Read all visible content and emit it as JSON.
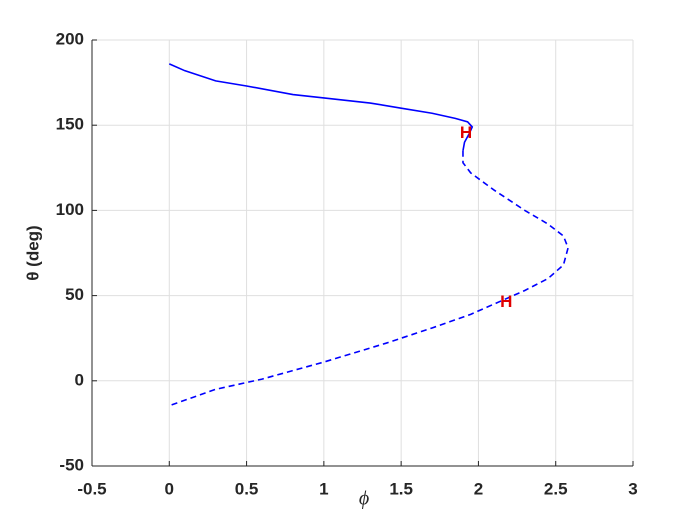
{
  "chart_data": {
    "type": "line",
    "xlabel": "ϕ",
    "ylabel": "θ (deg)",
    "xlim": [
      -0.5,
      3
    ],
    "ylim": [
      -50,
      200
    ],
    "xticks": [
      -0.5,
      0,
      0.5,
      1,
      1.5,
      2,
      2.5,
      3
    ],
    "yticks": [
      -50,
      0,
      50,
      100,
      150,
      200
    ],
    "grid": true,
    "series": [
      {
        "color": "#0000ff",
        "style": "solid",
        "x": [
          0,
          0.1,
          0.3,
          0.5,
          0.8,
          1.0,
          1.3,
          1.5,
          1.7,
          1.85,
          1.93,
          1.96,
          1.94,
          1.91,
          1.9
        ],
        "values": [
          186,
          182,
          176,
          173,
          168,
          166,
          163,
          160,
          157,
          154,
          152,
          149,
          145,
          140,
          135
        ]
      },
      {
        "color": "#0000ff",
        "style": "dashed",
        "x": [
          1.9,
          1.9,
          1.95,
          2.1,
          2.3,
          2.45,
          2.55,
          2.58,
          2.55,
          2.45,
          2.3,
          2.1,
          1.95,
          1.7,
          1.4,
          1.0,
          0.6,
          0.3,
          0
        ],
        "values": [
          135,
          128,
          122,
          112,
          100,
          92,
          85,
          78,
          68,
          60,
          53,
          45,
          39,
          31,
          22,
          11,
          1,
          -5,
          -14.6
        ]
      }
    ],
    "annotations": [
      {
        "text": "H",
        "x": 1.92,
        "y": 145
      },
      {
        "text": "H",
        "x": 2.18,
        "y": 46
      }
    ]
  }
}
